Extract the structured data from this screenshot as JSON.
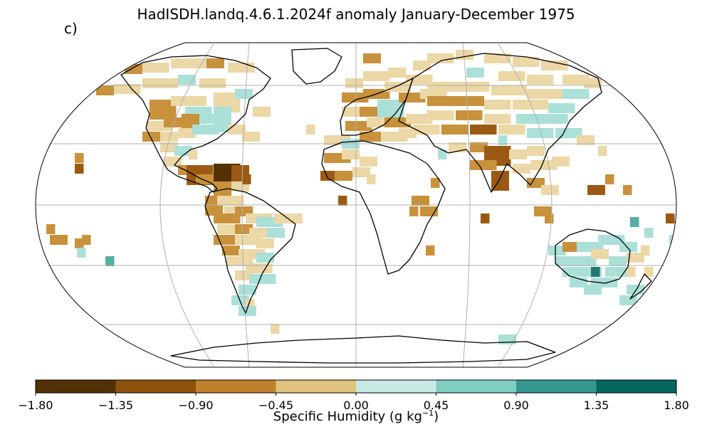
{
  "title": "HadISDH.landq.4.6.1.2024f anomaly January-December 1975",
  "panel_label": "c)",
  "colorbar": {
    "label_text": "Specific Humidity (g kg",
    "label_sup": "−1",
    "label_close": ")",
    "ticks": [
      "−1.80",
      "−1.35",
      "−0.90",
      "−0.45",
      "0.00",
      "0.45",
      "0.90",
      "1.35",
      "1.80"
    ],
    "colors": [
      "#543005",
      "#8c510a",
      "#bf812d",
      "#dfc27d",
      "#c7eae5",
      "#80cdc1",
      "#35978f",
      "#01665e"
    ]
  },
  "cell_palette": {
    "vdb": "#543005",
    "db": "#9b5a13",
    "b": "#c8913c",
    "lb": "#ecd7a6",
    "lt": "#abe0d9",
    "t": "#55aea4",
    "dt": "#1f7a70"
  }
}
